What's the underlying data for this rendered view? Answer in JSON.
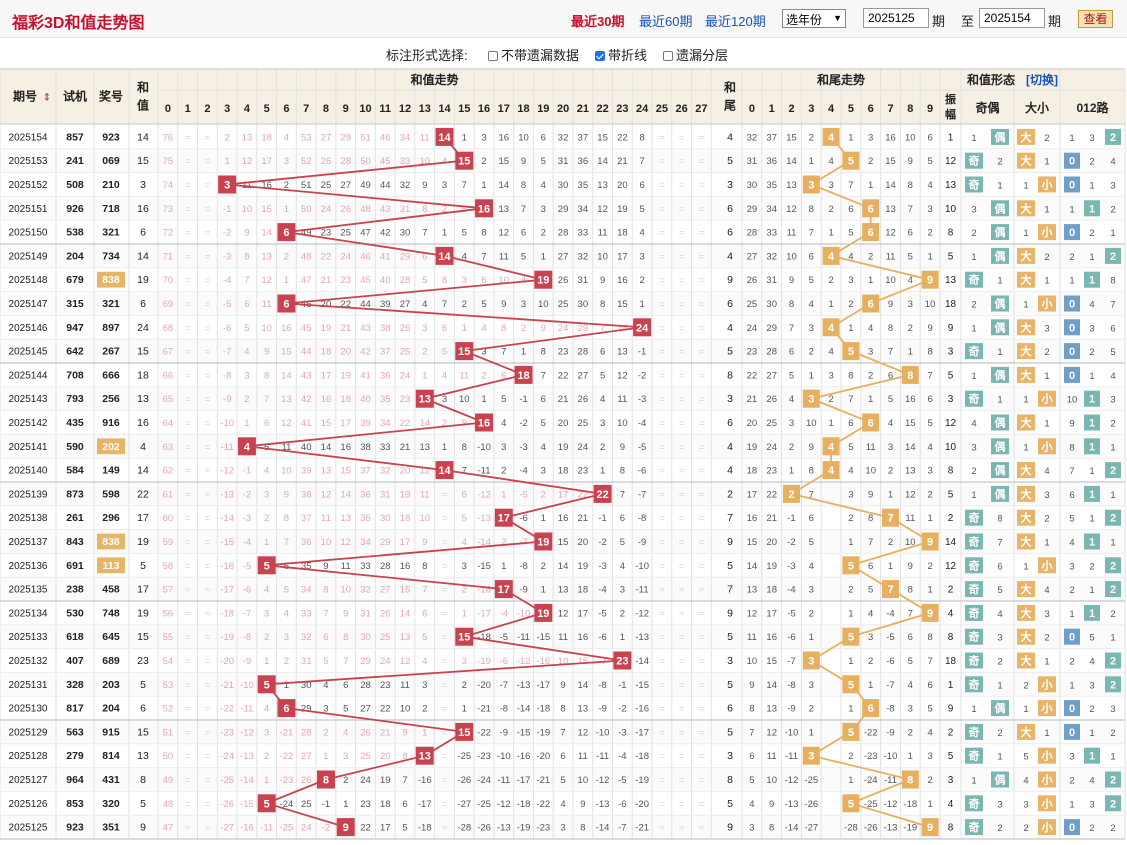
{
  "header": {
    "title": "福彩3D和值走势图",
    "ranges": [
      "最近30期",
      "最近60期",
      "最近120期"
    ],
    "active_range": 0,
    "year_select": "选年份",
    "from_issue": "2025125",
    "to_issue": "2025154",
    "period_label": "期",
    "to_label": "至",
    "query_button": "查看"
  },
  "annotation": {
    "label": "标注形式选择:",
    "options": [
      {
        "label": "不带遗漏数据",
        "checked": false
      },
      {
        "label": "带折线",
        "checked": true
      },
      {
        "label": "遗漏分层",
        "checked": false
      }
    ]
  },
  "colors": {
    "sum_marker": "#c9424f",
    "tail_marker": "#e5b060",
    "badge_gold": "#e8b468",
    "badge_teal": "#7ab6b2",
    "badge_blue": "#6f9fc9",
    "miss_pink": "#e3a8ac",
    "miss_gray": "#9a9a9a"
  },
  "table": {
    "headers": {
      "issue": "期号",
      "sort_icon": "sort-arrows-icon",
      "test": "试机",
      "prize": "奖号",
      "sum": "和值",
      "sum_trend": "和值走势",
      "tail": "和尾",
      "tail_trend": "和尾走势",
      "form": "和值形态",
      "switch": "[切换]",
      "amplitude": "振幅",
      "odd_even": "奇偶",
      "big_small": "大小",
      "route": "012路"
    },
    "sum_columns": [
      "0",
      "1",
      "2",
      "3",
      "4",
      "5",
      "6",
      "7",
      "8",
      "9",
      "10",
      "11",
      "12",
      "13",
      "14",
      "15",
      "16",
      "17",
      "18",
      "19",
      "20",
      "21",
      "22",
      "23",
      "24",
      "25",
      "26",
      "27"
    ],
    "tail_columns": [
      "0",
      "1",
      "2",
      "3",
      "4",
      "5",
      "6",
      "7",
      "8",
      "9"
    ],
    "odd_label": "奇",
    "even_label": "偶",
    "big_label": "大",
    "small_label": "小"
  },
  "chart_data": {
    "type": "table",
    "title": "福彩3D和值走势图",
    "x": [
      "2025154",
      "2025153",
      "2025152",
      "2025151",
      "2025150",
      "2025149",
      "2025148",
      "2025147",
      "2025146",
      "2025145",
      "2025144",
      "2025143",
      "2025142",
      "2025141",
      "2025140",
      "2025139",
      "2025138",
      "2025137",
      "2025136",
      "2025135",
      "2025134",
      "2025133",
      "2025132",
      "2025131",
      "2025130",
      "2025129",
      "2025128",
      "2025127",
      "2025126",
      "2025125"
    ],
    "series": [
      {
        "name": "试机",
        "values": [
          "857",
          "241",
          "508",
          "926",
          "538",
          "204",
          "679",
          "315",
          "947",
          "642",
          "708",
          "793",
          "435",
          "590",
          "584",
          "873",
          "261",
          "843",
          "691",
          "238",
          "530",
          "618",
          "407",
          "328",
          "817",
          "563",
          "279",
          "964",
          "853",
          "923"
        ]
      },
      {
        "name": "奖号",
        "values": [
          "923",
          "069",
          "210",
          "718",
          "321",
          "734",
          "838",
          "321",
          "897",
          "267",
          "666",
          "256",
          "916",
          "202",
          "149",
          "598",
          "296",
          "838",
          "113",
          "458",
          "748",
          "645",
          "689",
          "203",
          "204",
          "915",
          "814",
          "431",
          "320",
          "351"
        ]
      },
      {
        "name": "和值",
        "values": [
          14,
          15,
          3,
          16,
          6,
          14,
          19,
          6,
          24,
          15,
          18,
          13,
          16,
          4,
          14,
          22,
          17,
          19,
          5,
          17,
          19,
          15,
          23,
          5,
          6,
          15,
          13,
          8,
          5,
          9
        ]
      },
      {
        "name": "和尾",
        "values": [
          4,
          5,
          3,
          6,
          6,
          4,
          9,
          6,
          4,
          5,
          8,
          3,
          6,
          4,
          4,
          2,
          7,
          9,
          5,
          7,
          9,
          5,
          3,
          5,
          6,
          5,
          3,
          8,
          5,
          9
        ]
      },
      {
        "name": "振幅",
        "values": [
          1,
          12,
          13,
          10,
          8,
          5,
          13,
          18,
          9,
          3,
          5,
          3,
          12,
          10,
          8,
          5,
          2,
          14,
          12,
          2,
          4,
          8,
          18,
          1,
          9,
          2,
          5,
          3,
          4,
          8
        ]
      }
    ],
    "highlighted_prize_rows": [
      6,
      13,
      17,
      18
    ],
    "sum_miss_first_row": [
      76,
      "",
      "",
      "2",
      "13",
      "18",
      "4",
      "53",
      "27",
      "29",
      "51",
      "46",
      "34",
      "11",
      "",
      "1",
      "3",
      "16",
      "10",
      "6",
      "32",
      "37",
      "15",
      "22",
      "8",
      "",
      "",
      ""
    ],
    "tail_miss_first_row": [
      32,
      37,
      15,
      2,
      "",
      1,
      3,
      16,
      10,
      6
    ],
    "legend": "none",
    "grid": true
  }
}
